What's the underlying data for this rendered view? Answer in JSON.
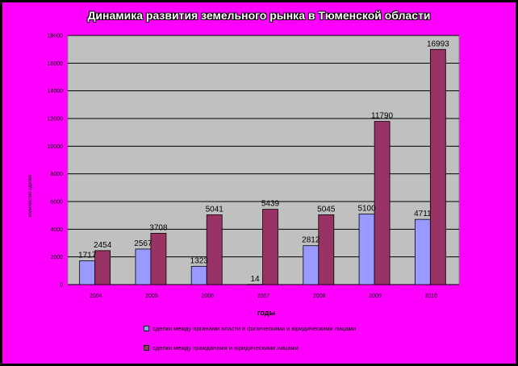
{
  "chart_data": {
    "type": "bar",
    "title": "Динамика развития земельного рынка в Тюменской области",
    "xlabel": "годы",
    "ylabel": "количество сделок",
    "categories": [
      "2004",
      "2005",
      "2006",
      "2007",
      "2008",
      "2009",
      "2010"
    ],
    "series": [
      {
        "name": "сделки между органами власти и физическими и юридическими лицами",
        "color": "#9999ff",
        "values": [
          1717,
          2567,
          1323,
          14,
          2812,
          5100,
          4711
        ]
      },
      {
        "name": "сделки между гражданами и юридическими лицами",
        "color": "#993366",
        "values": [
          2454,
          3708,
          5041,
          5439,
          5045,
          11790,
          16993
        ]
      }
    ],
    "ylim": [
      0,
      18000
    ],
    "yticks": [
      0,
      2000,
      4000,
      6000,
      8000,
      10000,
      12000,
      14000,
      16000,
      18000
    ],
    "grid": true,
    "legend_position": "bottom",
    "plot_background": "#c0c0c0",
    "page_background": "#ff00ff"
  }
}
